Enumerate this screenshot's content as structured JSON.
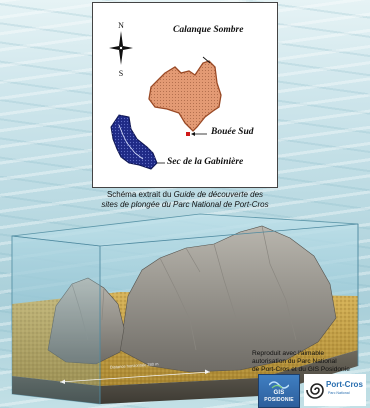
{
  "map": {
    "compass": {
      "north": "N",
      "south": "S"
    },
    "labels": {
      "calanque": "Calanque Sombre",
      "bouee": "Bouée Sud",
      "sec": "Sec de la Gabinière"
    },
    "colors": {
      "calanque_fill": "#e39a74",
      "gabiniere_fill": "#1f2a86",
      "buoy": "#d01818"
    }
  },
  "caption": {
    "line1_a": "Schéma extrait du ",
    "line1_italic": "Guide de découverte des",
    "line2_italic": "sites de plongée du Parc National de Port-Cros"
  },
  "diagram": {
    "scale_text": "Distance horizontale 280 m"
  },
  "credits": {
    "lines": [
      "Reproduit avec l'aimable",
      "autorisation du Parc National",
      "de Port-Cros et du GIS Posidonie"
    ],
    "logo_gis": {
      "top": "GIS",
      "bottom": "POSIDONIE"
    },
    "logo_portcros": {
      "name": "Port-Cros",
      "sub": "Parc National"
    }
  }
}
